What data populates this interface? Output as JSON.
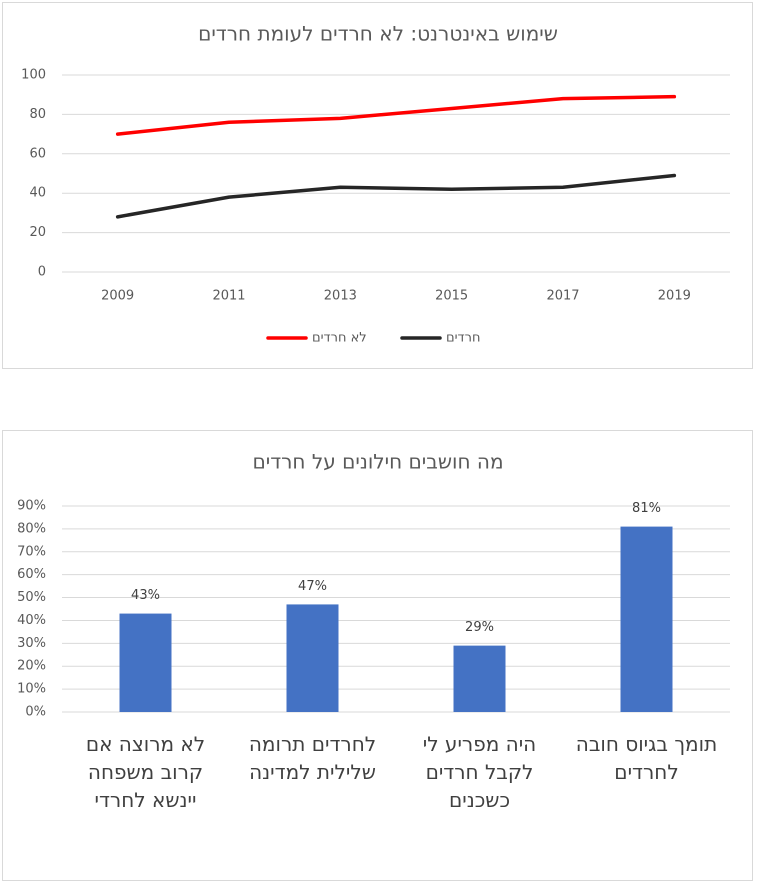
{
  "chart_data": [
    {
      "type": "line",
      "title": "שימוש באינטרנט: לא חרדים לעומת חרדים",
      "categories": [
        "2009",
        "2011",
        "2013",
        "2015",
        "2017",
        "2019"
      ],
      "series": [
        {
          "name": "לא חרדים",
          "color": "#ff0000",
          "values": [
            70,
            76,
            78,
            83,
            88,
            89
          ]
        },
        {
          "name": "חרדים",
          "color": "#262626",
          "values": [
            28,
            38,
            43,
            42,
            43,
            49
          ]
        }
      ],
      "ylim": [
        0,
        100
      ],
      "yticks": [
        0,
        20,
        40,
        60,
        80,
        100
      ],
      "grid": true,
      "legend": "bottom"
    },
    {
      "type": "bar",
      "title": "מה חושבים חילונים על חרדים",
      "categories": [
        "לא מרוצה אם קרוב משפחה יינשא לחרדי",
        "לחרדים תרומה שלילית למדינה",
        "היה מפריע לי לקבל חרדים כשכנים",
        "תומך בגיוס חובה לחרדים"
      ],
      "values": [
        43,
        47,
        29,
        81
      ],
      "value_labels": [
        "43%",
        "47%",
        "29%",
        "81%"
      ],
      "color": "#4472c4",
      "ylim": [
        0,
        90
      ],
      "yticks": [
        {
          "value": 0,
          "label": "0%"
        },
        {
          "value": 10,
          "label": "10%"
        },
        {
          "value": 20,
          "label": "20%"
        },
        {
          "value": 30,
          "label": "30%"
        },
        {
          "value": 40,
          "label": "40%"
        },
        {
          "value": 50,
          "label": "50%"
        },
        {
          "value": 60,
          "label": "60%"
        },
        {
          "value": 70,
          "label": "70%"
        },
        {
          "value": 80,
          "label": "80%"
        },
        {
          "value": 90,
          "label": "90%"
        }
      ],
      "grid": true
    }
  ]
}
